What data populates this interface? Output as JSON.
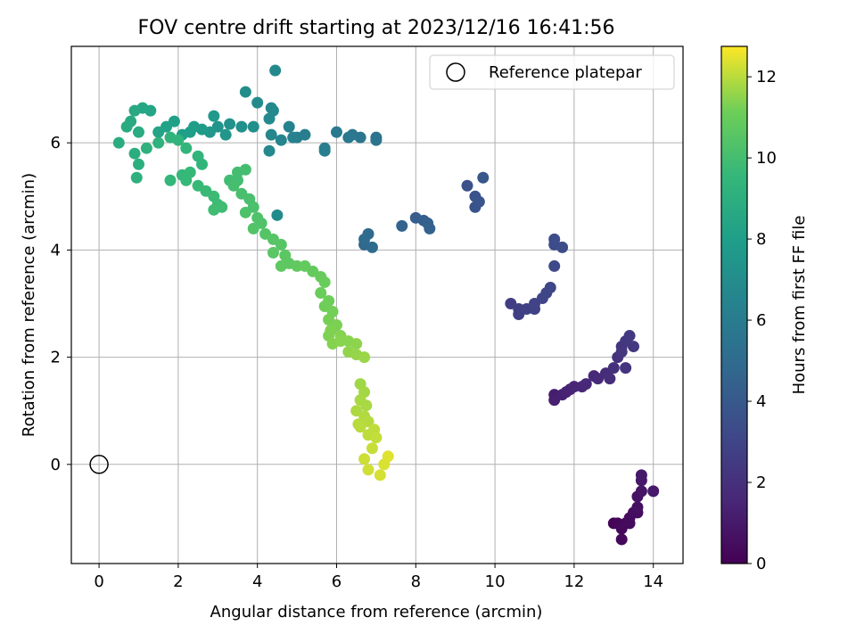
{
  "chart_data": {
    "type": "scatter",
    "title": "FOV centre drift starting at 2023/12/16 16:41:56",
    "xlabel": "Angular distance from reference (arcmin)",
    "ylabel": "Rotation from reference (arcmin)",
    "xlim": [
      -0.7,
      14.75
    ],
    "ylim": [
      -1.85,
      7.8
    ],
    "xticks": [
      0,
      2,
      4,
      6,
      8,
      10,
      12,
      14
    ],
    "yticks": [
      0,
      2,
      4,
      6
    ],
    "grid": true,
    "legend": {
      "position": "top-right",
      "entries": [
        "Reference platepar"
      ]
    },
    "colorbar": {
      "label": "Hours from first FF file",
      "range": [
        0,
        12.75
      ],
      "ticks": [
        0,
        2,
        4,
        6,
        8,
        10,
        12
      ],
      "colormap": "viridis"
    },
    "reference_point": {
      "x": 0,
      "y": 0
    },
    "series": [
      {
        "points": [
          [
            13.0,
            -1.1,
            0.1
          ],
          [
            13.1,
            -1.1,
            0.2
          ],
          [
            13.2,
            -1.2,
            0.3
          ],
          [
            13.3,
            -1.1,
            0.35
          ],
          [
            13.2,
            -1.4,
            0.3
          ],
          [
            13.4,
            -1.0,
            0.4
          ],
          [
            13.5,
            -0.9,
            0.5
          ],
          [
            13.6,
            -0.8,
            0.6
          ],
          [
            13.6,
            -0.6,
            0.7
          ],
          [
            13.7,
            -0.5,
            0.8
          ],
          [
            13.7,
            -0.3,
            0.9
          ],
          [
            13.7,
            -0.2,
            0.95
          ],
          [
            14.0,
            -0.5,
            1.0
          ],
          [
            13.6,
            -0.9,
            0.5
          ],
          [
            13.4,
            -1.1,
            0.4
          ],
          [
            11.5,
            1.3,
            1.2
          ],
          [
            11.7,
            1.3,
            1.3
          ],
          [
            11.9,
            1.4,
            1.4
          ],
          [
            12.0,
            1.45,
            1.5
          ],
          [
            12.3,
            1.5,
            1.6
          ],
          [
            12.6,
            1.6,
            1.7
          ],
          [
            12.8,
            1.7,
            1.8
          ],
          [
            12.9,
            1.6,
            1.9
          ],
          [
            13.0,
            1.8,
            2.0
          ],
          [
            13.1,
            2.0,
            2.1
          ],
          [
            13.2,
            2.2,
            2.2
          ],
          [
            13.3,
            2.3,
            2.3
          ],
          [
            13.4,
            2.4,
            2.4
          ],
          [
            13.5,
            2.2,
            2.4
          ],
          [
            13.3,
            1.8,
            2.2
          ],
          [
            11.5,
            1.2,
            1.25
          ],
          [
            11.8,
            1.35,
            1.35
          ],
          [
            12.2,
            1.45,
            1.55
          ],
          [
            12.5,
            1.65,
            1.65
          ],
          [
            13.2,
            2.1,
            2.25
          ],
          [
            10.4,
            3.0,
            2.6
          ],
          [
            10.6,
            2.9,
            2.7
          ],
          [
            10.8,
            2.9,
            2.8
          ],
          [
            11.0,
            3.0,
            2.9
          ],
          [
            11.2,
            3.1,
            3.0
          ],
          [
            11.4,
            3.3,
            3.1
          ],
          [
            11.5,
            3.7,
            3.2
          ],
          [
            11.5,
            4.1,
            3.3
          ],
          [
            11.7,
            4.05,
            3.4
          ],
          [
            10.6,
            2.8,
            2.7
          ],
          [
            11.0,
            2.9,
            2.85
          ],
          [
            11.3,
            3.2,
            3.05
          ],
          [
            11.5,
            4.2,
            3.35
          ],
          [
            9.3,
            5.2,
            3.6
          ],
          [
            9.5,
            5.0,
            3.7
          ],
          [
            9.6,
            4.9,
            3.8
          ],
          [
            9.7,
            5.35,
            3.9
          ],
          [
            9.5,
            4.8,
            3.75
          ],
          [
            8.0,
            4.6,
            4.2
          ],
          [
            8.2,
            4.55,
            4.3
          ],
          [
            8.3,
            4.5,
            4.4
          ],
          [
            8.35,
            4.4,
            4.5
          ],
          [
            7.65,
            4.45,
            4.6
          ],
          [
            6.7,
            4.1,
            4.8
          ],
          [
            6.8,
            4.3,
            4.9
          ],
          [
            6.7,
            4.2,
            5.0
          ],
          [
            6.9,
            4.05,
            5.1
          ],
          [
            7.0,
            6.1,
            5.4
          ],
          [
            7.0,
            6.05,
            5.5
          ],
          [
            6.6,
            6.1,
            5.6
          ],
          [
            6.4,
            6.15,
            5.7
          ],
          [
            6.3,
            6.1,
            5.8
          ],
          [
            6.0,
            6.2,
            5.9
          ],
          [
            5.7,
            5.9,
            6.0
          ],
          [
            5.7,
            5.85,
            6.05
          ],
          [
            5.2,
            6.15,
            6.1
          ],
          [
            5.0,
            6.1,
            6.2
          ],
          [
            4.9,
            6.1,
            6.3
          ],
          [
            4.8,
            6.3,
            6.4
          ],
          [
            4.6,
            6.05,
            6.5
          ],
          [
            4.35,
            6.15,
            6.6
          ],
          [
            4.3,
            5.85,
            6.7
          ],
          [
            4.4,
            6.6,
            6.8
          ],
          [
            4.3,
            6.45,
            6.85
          ],
          [
            4.0,
            6.75,
            6.9
          ],
          [
            3.7,
            6.95,
            7.0
          ],
          [
            3.9,
            6.3,
            7.1
          ],
          [
            3.6,
            6.3,
            7.2
          ],
          [
            3.3,
            6.35,
            7.3
          ],
          [
            3.0,
            6.3,
            7.4
          ],
          [
            3.2,
            6.15,
            7.5
          ],
          [
            2.8,
            6.2,
            7.6
          ],
          [
            2.9,
            6.5,
            7.7
          ],
          [
            2.6,
            6.25,
            7.8
          ],
          [
            2.4,
            6.3,
            7.9
          ],
          [
            2.3,
            6.2,
            8.0
          ],
          [
            2.1,
            6.15,
            8.05
          ],
          [
            4.45,
            7.35,
            6.75
          ],
          [
            4.35,
            6.65,
            6.8
          ],
          [
            4.5,
            4.65,
            6.9
          ],
          [
            1.9,
            6.4,
            8.1
          ],
          [
            1.7,
            6.3,
            8.2
          ],
          [
            1.5,
            6.2,
            8.3
          ],
          [
            1.3,
            6.6,
            8.4
          ],
          [
            1.1,
            6.65,
            8.5
          ],
          [
            0.9,
            6.6,
            8.6
          ],
          [
            0.8,
            6.4,
            8.7
          ],
          [
            0.7,
            6.3,
            8.75
          ],
          [
            1.0,
            6.2,
            8.8
          ],
          [
            0.5,
            6.0,
            8.85
          ],
          [
            0.9,
            5.8,
            8.9
          ],
          [
            1.0,
            5.6,
            9.0
          ],
          [
            0.95,
            5.35,
            9.1
          ],
          [
            1.2,
            5.9,
            9.15
          ],
          [
            1.5,
            6.0,
            9.2
          ],
          [
            1.8,
            6.1,
            9.25
          ],
          [
            2.0,
            6.05,
            9.3
          ],
          [
            2.2,
            5.9,
            9.35
          ],
          [
            2.5,
            5.75,
            9.4
          ],
          [
            2.6,
            5.6,
            9.45
          ],
          [
            1.8,
            5.3,
            9.5
          ],
          [
            2.1,
            5.4,
            9.55
          ],
          [
            2.3,
            5.45,
            9.6
          ],
          [
            2.2,
            5.3,
            9.6
          ],
          [
            2.5,
            5.2,
            9.65
          ],
          [
            2.7,
            5.1,
            9.7
          ],
          [
            2.9,
            5.0,
            9.75
          ],
          [
            3.0,
            4.85,
            9.8
          ],
          [
            3.1,
            4.8,
            9.85
          ],
          [
            2.9,
            4.75,
            9.9
          ],
          [
            3.3,
            5.3,
            9.9
          ],
          [
            3.5,
            5.3,
            9.95
          ],
          [
            3.7,
            5.5,
            10.0
          ],
          [
            3.5,
            5.45,
            10.0
          ],
          [
            3.4,
            5.2,
            10.05
          ],
          [
            3.6,
            5.05,
            10.1
          ],
          [
            3.8,
            4.95,
            10.15
          ],
          [
            3.9,
            4.8,
            10.2
          ],
          [
            3.7,
            4.7,
            10.25
          ],
          [
            4.0,
            4.6,
            10.3
          ],
          [
            4.1,
            4.5,
            10.35
          ],
          [
            3.9,
            4.4,
            10.4
          ],
          [
            4.2,
            4.3,
            10.45
          ],
          [
            4.4,
            4.2,
            10.5
          ],
          [
            4.6,
            4.1,
            10.55
          ],
          [
            4.4,
            3.95,
            10.6
          ],
          [
            4.7,
            3.9,
            10.65
          ],
          [
            4.8,
            3.75,
            10.7
          ],
          [
            4.6,
            3.7,
            10.75
          ],
          [
            5.0,
            3.7,
            10.8
          ],
          [
            5.2,
            3.7,
            10.85
          ],
          [
            5.4,
            3.6,
            10.9
          ],
          [
            5.6,
            3.5,
            10.95
          ],
          [
            5.7,
            3.4,
            11.0
          ],
          [
            5.6,
            3.2,
            11.05
          ],
          [
            5.8,
            3.05,
            11.1
          ],
          [
            5.7,
            2.95,
            11.15
          ],
          [
            5.9,
            2.85,
            11.2
          ],
          [
            5.8,
            2.7,
            11.25
          ],
          [
            6.0,
            2.6,
            11.3
          ],
          [
            5.8,
            2.4,
            11.35
          ],
          [
            6.1,
            2.4,
            11.4
          ],
          [
            6.3,
            2.3,
            11.45
          ],
          [
            6.5,
            2.25,
            11.5
          ],
          [
            6.3,
            2.1,
            11.55
          ],
          [
            6.5,
            2.05,
            11.6
          ],
          [
            6.7,
            2.0,
            11.65
          ],
          [
            5.9,
            2.25,
            11.4
          ],
          [
            6.1,
            2.3,
            11.45
          ],
          [
            5.85,
            2.5,
            11.35
          ],
          [
            6.6,
            1.5,
            11.7
          ],
          [
            6.7,
            1.35,
            11.75
          ],
          [
            6.6,
            1.2,
            11.8
          ],
          [
            6.5,
            1.0,
            11.85
          ],
          [
            6.7,
            0.9,
            11.9
          ],
          [
            6.8,
            0.8,
            11.95
          ],
          [
            6.6,
            0.7,
            12.0
          ],
          [
            6.8,
            0.55,
            12.05
          ],
          [
            7.0,
            0.5,
            12.1
          ],
          [
            6.9,
            0.3,
            12.15
          ],
          [
            6.7,
            0.1,
            12.2
          ],
          [
            6.8,
            -0.1,
            12.25
          ],
          [
            7.1,
            -0.2,
            12.3
          ],
          [
            7.2,
            0.0,
            12.35
          ],
          [
            7.3,
            0.15,
            12.4
          ],
          [
            6.75,
            1.1,
            11.8
          ],
          [
            6.55,
            0.75,
            11.95
          ],
          [
            6.95,
            0.65,
            12.05
          ]
        ]
      }
    ]
  }
}
